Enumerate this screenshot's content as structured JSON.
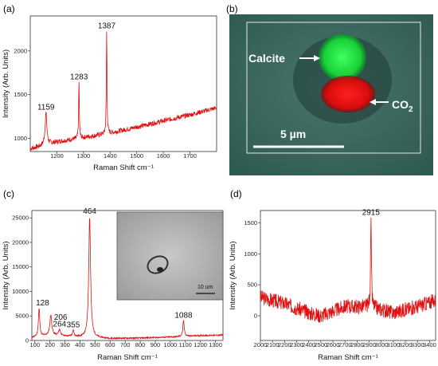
{
  "panels": {
    "a": {
      "label": "(a)"
    },
    "b": {
      "label": "(b)",
      "calcite_label": "Calcite",
      "co2_label": "CO",
      "co2_sub": "2",
      "scale_label": "5 µm"
    },
    "c": {
      "label": "(c)",
      "inset_scale_label": "10 um"
    },
    "d": {
      "label": "(d)"
    }
  },
  "colors": {
    "spectrum": "#e01010",
    "calcite": "#20e040",
    "co2": "#e81010",
    "micrograph_bg": "#3e6a62"
  },
  "chart_data": [
    {
      "id": "a",
      "type": "line",
      "xlabel": "Raman Shift cm⁻¹",
      "ylabel": "Intensity (Arb. Units)",
      "xlim": [
        1100,
        1800
      ],
      "ylim": [
        850,
        2400
      ],
      "xticks": [
        "1200",
        "1300",
        "1400",
        "1500",
        "1600",
        "1700"
      ],
      "yticks": [
        "1000",
        "1500",
        "2000"
      ],
      "baseline": [
        [
          1100,
          880
        ],
        [
          1200,
          960
        ],
        [
          1300,
          1010
        ],
        [
          1400,
          1060
        ],
        [
          1500,
          1130
        ],
        [
          1600,
          1200
        ],
        [
          1700,
          1270
        ],
        [
          1800,
          1350
        ]
      ],
      "noise": 28,
      "peaks": [
        {
          "x": 1159,
          "y": 1290,
          "label": "1159"
        },
        {
          "x": 1283,
          "y": 1640,
          "label": "1283"
        },
        {
          "x": 1387,
          "y": 2220,
          "label": "1387"
        }
      ]
    },
    {
      "id": "c",
      "type": "line",
      "xlabel": "Raman Shift cm⁻¹",
      "ylabel": "Intensity (Arb. Units)",
      "xlim": [
        80,
        1350
      ],
      "ylim": [
        0,
        26500
      ],
      "xticks": [
        "100",
        "200",
        "300",
        "400",
        "500",
        "600",
        "700",
        "800",
        "900",
        "1000",
        "1100",
        "1200",
        "1300"
      ],
      "yticks": [
        "0",
        "5000",
        "10000",
        "15000",
        "20000",
        "25000"
      ],
      "baseline": [
        [
          80,
          600
        ],
        [
          200,
          1100
        ],
        [
          400,
          700
        ],
        [
          600,
          400
        ],
        [
          800,
          500
        ],
        [
          1000,
          700
        ],
        [
          1200,
          1000
        ],
        [
          1350,
          1100
        ]
      ],
      "noise": 150,
      "peaks": [
        {
          "x": 128,
          "y": 6500,
          "label": "128"
        },
        {
          "x": 206,
          "y": 5200,
          "label": "206"
        },
        {
          "x": 264,
          "y": 2200,
          "label": "264"
        },
        {
          "x": 355,
          "y": 2000,
          "label": "355"
        },
        {
          "x": 464,
          "y": 25200,
          "label": "464"
        },
        {
          "x": 1088,
          "y": 4000,
          "label": "1088"
        }
      ]
    },
    {
      "id": "d",
      "type": "line",
      "xlabel": "Raman Shift cm⁻¹",
      "ylabel": "Intensity (Arb. Units)",
      "xlim": [
        2000,
        3450
      ],
      "ylim": [
        -400,
        1700
      ],
      "xticks": [
        "2000",
        "2100",
        "2200",
        "2300",
        "2400",
        "2500",
        "2600",
        "2700",
        "2800",
        "2900",
        "3000",
        "3100",
        "3200",
        "3300",
        "3400"
      ],
      "yticks": [
        "0",
        "500",
        "1000",
        "1500"
      ],
      "baseline": [
        [
          2000,
          300
        ],
        [
          2200,
          200
        ],
        [
          2400,
          50
        ],
        [
          2500,
          0
        ],
        [
          2700,
          150
        ],
        [
          2900,
          150
        ],
        [
          3100,
          50
        ],
        [
          3300,
          150
        ],
        [
          3450,
          250
        ]
      ],
      "noise": 120,
      "peaks": [
        {
          "x": 2915,
          "y": 1580,
          "label": "2915"
        }
      ]
    }
  ]
}
